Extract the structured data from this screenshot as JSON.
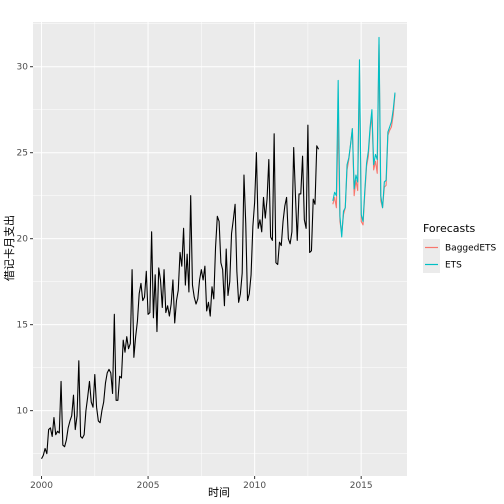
{
  "chart_data": {
    "type": "line",
    "xlabel": "时间",
    "ylabel": "借记卡月支出",
    "xlim": [
      1999.6,
      2017.15
    ],
    "ylim": [
      6.2,
      32.6
    ],
    "x_ticks": [
      2000,
      2005,
      2010,
      2015
    ],
    "y_ticks": [
      10,
      15,
      20,
      25,
      30
    ],
    "grid": true,
    "legend": {
      "title": "Forecasts",
      "placement": "right",
      "entries": [
        {
          "label": "BaggedETS",
          "color": "#F8766D"
        },
        {
          "label": "ETS",
          "color": "#00BFC4"
        }
      ]
    },
    "series": [
      {
        "color": "#000000",
        "start": 2000.0,
        "step": 0.08333,
        "values": [
          7.2,
          7.4,
          7.8,
          7.5,
          8.9,
          9.0,
          8.5,
          9.6,
          8.6,
          8.8,
          8.7,
          11.7,
          8.0,
          7.9,
          8.3,
          9.0,
          9.4,
          9.7,
          10.9,
          8.9,
          9.7,
          12.9,
          8.5,
          8.4,
          8.6,
          10.0,
          10.8,
          11.7,
          10.5,
          10.2,
          12.1,
          10.2,
          9.4,
          9.3,
          10.0,
          10.5,
          11.6,
          12.2,
          12.4,
          12.2,
          11.0,
          15.6,
          10.6,
          10.6,
          12.0,
          11.9,
          14.1,
          13.4,
          14.3,
          13.6,
          13.9,
          18.2,
          13.1,
          14.3,
          15.2,
          16.8,
          17.4,
          16.4,
          16.6,
          18.1,
          15.6,
          15.7,
          20.4,
          15.4,
          17.9,
          14.6,
          18.3,
          17.6,
          16.0,
          18.2,
          15.7,
          16.1,
          15.5,
          16.2,
          17.6,
          15.1,
          16.4,
          17.0,
          19.2,
          18.4,
          20.6,
          17.3,
          19.1,
          16.9,
          22.5,
          17.3,
          16.6,
          16.2,
          16.5,
          17.6,
          18.2,
          17.6,
          18.4,
          15.8,
          16.3,
          15.5,
          17.2,
          16.5,
          19.5,
          21.3,
          21.0,
          18.6,
          18.2,
          16.1,
          19.4,
          16.7,
          17.5,
          20.3,
          21.1,
          22.0,
          18.1,
          16.3,
          16.8,
          18.0,
          23.7,
          20.9,
          16.4,
          16.8,
          17.9,
          20.7,
          22.1,
          25.0,
          20.6,
          21.1,
          20.4,
          22.4,
          21.2,
          22.3,
          24.6,
          20.1,
          19.9,
          26.1,
          18.6,
          18.5,
          19.8,
          19.6,
          21.0,
          21.9,
          22.4,
          20.0,
          19.7,
          20.4,
          25.3,
          22.5,
          19.9,
          22.6,
          22.6,
          24.8,
          21.1,
          20.6,
          26.6,
          19.2,
          19.3,
          22.3,
          22.0,
          25.4,
          25.2
        ]
      },
      {
        "name": "BaggedETS",
        "color": "#F8766D",
        "start": 2013.67,
        "step": 0.08333,
        "values": [
          22.0,
          22.4,
          21.8,
          27.0,
          21.0,
          20.3,
          21.4,
          21.8,
          24.0,
          24.6,
          25.5,
          26.4,
          22.5,
          23.4,
          22.8,
          29.8,
          21.0,
          20.8,
          22.6,
          24.2,
          24.8,
          26.3,
          27.2,
          24.0,
          24.5,
          23.8,
          31.3,
          22.2,
          21.8,
          23.0,
          23.1,
          26.0,
          26.3,
          26.5,
          27.2,
          28.4
        ]
      },
      {
        "name": "ETS",
        "color": "#00BFC4",
        "start": 2013.67,
        "step": 0.08333,
        "values": [
          22.2,
          22.7,
          22.5,
          29.2,
          21.3,
          20.1,
          21.6,
          21.8,
          24.3,
          24.7,
          25.5,
          26.4,
          22.9,
          23.7,
          23.3,
          30.4,
          21.4,
          21.0,
          22.8,
          24.4,
          25.1,
          26.5,
          27.5,
          24.3,
          24.9,
          24.6,
          31.7,
          22.5,
          21.8,
          23.3,
          23.4,
          26.2,
          26.5,
          26.8,
          27.5,
          28.5
        ]
      }
    ]
  }
}
